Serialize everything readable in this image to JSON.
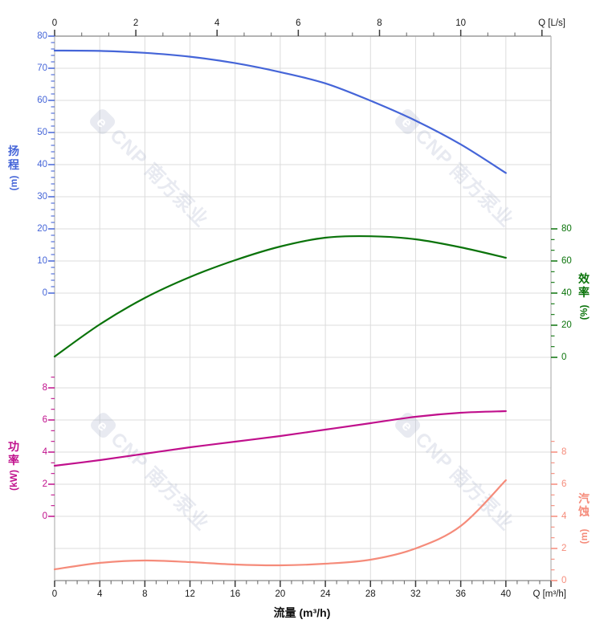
{
  "watermark": {
    "logo_letter": "e",
    "text": "CNP 南方泵业"
  },
  "axes": {
    "top": {
      "title": "Q [L/s]",
      "tick_values": [
        0,
        2,
        4,
        6,
        8,
        10
      ],
      "color": "#1a1a1a"
    },
    "bottom": {
      "title": "Q [m³/h]",
      "axis_label": "流量 (m³/h)",
      "tick_values": [
        0,
        4,
        8,
        12,
        16,
        20,
        24,
        28,
        32,
        36,
        40
      ],
      "color": "#1a1a1a"
    },
    "head": {
      "label": "扬程",
      "unit": "(m)",
      "color": "#4565D8",
      "tick_values": [
        0,
        10,
        20,
        30,
        40,
        50,
        60,
        70,
        80
      ],
      "range": [
        0,
        80
      ]
    },
    "efficiency": {
      "label": "效率",
      "unit": "(%)",
      "color": "#0A730A",
      "tick_values": [
        0,
        20,
        40,
        60,
        80
      ],
      "range": [
        0,
        80
      ]
    },
    "power": {
      "label": "功率",
      "unit": "(kW)",
      "color": "#C0108C",
      "tick_values": [
        0,
        2,
        4,
        6,
        8
      ],
      "range": [
        0,
        8
      ]
    },
    "npsh": {
      "label": "汽蚀",
      "unit": "(m)",
      "color": "#F58B7A",
      "tick_values": [
        0,
        2,
        4,
        6,
        8
      ],
      "range": [
        0,
        8
      ]
    }
  },
  "chart_data": {
    "type": "line",
    "title": "",
    "xlabel": "流量 (m³/h)",
    "x_top_axis": {
      "label": "Q [L/s]",
      "range": [
        0,
        12.2
      ],
      "ticks": [
        0,
        2,
        4,
        6,
        8,
        10
      ]
    },
    "x_bottom_axis": {
      "label": "Q [m³/h]",
      "range": [
        0,
        44
      ],
      "ticks": [
        0,
        4,
        8,
        12,
        16,
        20,
        24,
        28,
        32,
        36,
        40
      ]
    },
    "grid": true,
    "legend_position": "none",
    "x": [
      0,
      4,
      8,
      12,
      16,
      20,
      24,
      28,
      32,
      36,
      40
    ],
    "series": [
      {
        "name": "扬程",
        "axis": "head",
        "unit": "m",
        "color": "#4565D8",
        "ylim": [
          0,
          80
        ],
        "values": [
          75.5,
          75.4,
          74.8,
          73.6,
          71.6,
          68.8,
          65.3,
          59.9,
          53.7,
          46.3,
          37.4
        ]
      },
      {
        "name": "效率",
        "axis": "efficiency",
        "unit": "%",
        "color": "#0A730A",
        "ylim": [
          0,
          80
        ],
        "values": [
          0.5,
          20.5,
          37,
          50,
          60.5,
          69,
          74.5,
          75.4,
          73.5,
          68.5,
          62
        ]
      },
      {
        "name": "功率",
        "axis": "power",
        "unit": "kW",
        "color": "#C0108C",
        "ylim": [
          0,
          8
        ],
        "values": [
          3.15,
          3.5,
          3.9,
          4.3,
          4.65,
          5.0,
          5.4,
          5.8,
          6.2,
          6.45,
          6.55
        ]
      },
      {
        "name": "汽蚀",
        "axis": "npsh",
        "unit": "m",
        "color": "#F58B7A",
        "ylim": [
          0,
          8
        ],
        "values": [
          0.7,
          1.1,
          1.25,
          1.15,
          1.0,
          0.95,
          1.05,
          1.3,
          2.0,
          3.4,
          6.25
        ]
      }
    ]
  }
}
